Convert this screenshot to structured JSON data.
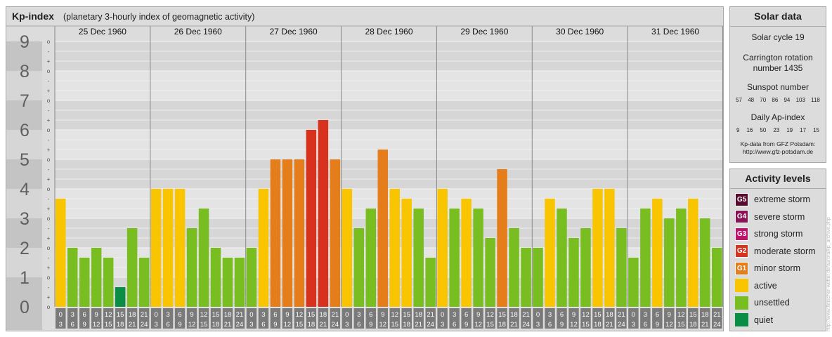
{
  "header": {
    "title": "Kp-index",
    "subtitle": "(planetary 3-hourly index of geomagnetic activity)"
  },
  "chart_data": {
    "type": "bar",
    "title": "Kp-index",
    "subtitle": "(planetary 3-hourly index of geomagnetic activity)",
    "ylim": [
      0,
      9
    ],
    "y_ticks": [
      "0",
      "1",
      "2",
      "3",
      "4",
      "5",
      "6",
      "7",
      "8",
      "9"
    ],
    "minor_tick_labels": [
      "o",
      "+",
      "-"
    ],
    "days": [
      "25 Dec 1960",
      "26 Dec 1960",
      "27 Dec 1960",
      "28 Dec 1960",
      "29 Dec 1960",
      "30 Dec 1960",
      "31 Dec 1960"
    ],
    "interval_start_labels": [
      "0",
      "3",
      "6",
      "9",
      "12",
      "15",
      "18",
      "21"
    ],
    "interval_end_labels": [
      "3",
      "6",
      "9",
      "12",
      "15",
      "18",
      "21",
      "24"
    ],
    "values": [
      [
        3.667,
        2.0,
        1.667,
        2.0,
        1.667,
        0.667,
        2.667,
        1.667
      ],
      [
        4.0,
        4.0,
        4.0,
        2.667,
        3.333,
        2.0,
        1.667,
        1.667
      ],
      [
        2.0,
        4.0,
        5.0,
        5.0,
        5.0,
        6.0,
        6.333,
        5.0
      ],
      [
        4.0,
        2.667,
        3.333,
        5.333,
        4.0,
        3.667,
        3.333,
        1.667
      ],
      [
        4.0,
        3.333,
        3.667,
        3.333,
        2.333,
        4.667,
        2.667,
        2.0
      ],
      [
        2.0,
        3.667,
        3.333,
        2.333,
        2.667,
        4.0,
        4.0,
        2.667
      ],
      [
        1.667,
        3.333,
        3.667,
        3.0,
        3.333,
        3.667,
        3.0,
        2.0
      ]
    ],
    "grid": true
  },
  "solar": {
    "title": "Solar data",
    "cycle": "Solar cycle 19",
    "carrington_line1": "Carrington rotation",
    "carrington_line2": "number 1435",
    "sunspot_label": "Sunspot number",
    "sunspot_values": [
      "57",
      "48",
      "70",
      "86",
      "94",
      "103",
      "118"
    ],
    "ap_label": "Daily Ap-index",
    "ap_values": [
      "9",
      "16",
      "50",
      "23",
      "19",
      "17",
      "15"
    ],
    "source_line1": "Kp-data from GFZ Potsdam:",
    "source_line2": "http://www.gfz-potsdam.de"
  },
  "activity": {
    "title": "Activity levels",
    "levels": [
      {
        "code": "G5",
        "label": "extreme storm",
        "color": "#5a0a2e"
      },
      {
        "code": "G4",
        "label": "severe storm",
        "color": "#8b1056"
      },
      {
        "code": "G3",
        "label": "strong storm",
        "color": "#c0126a"
      },
      {
        "code": "G2",
        "label": "moderate storm",
        "color": "#d8321e"
      },
      {
        "code": "G1",
        "label": "minor storm",
        "color": "#e47d1a"
      },
      {
        "code": "",
        "label": "active",
        "color": "#f9c400"
      },
      {
        "code": "",
        "label": "unsettled",
        "color": "#78be20"
      },
      {
        "code": "",
        "label": "quiet",
        "color": "#0a8d44"
      }
    ]
  },
  "watermark": "http://www.fleischer-wetter.de/aurora/kp_archive.php"
}
